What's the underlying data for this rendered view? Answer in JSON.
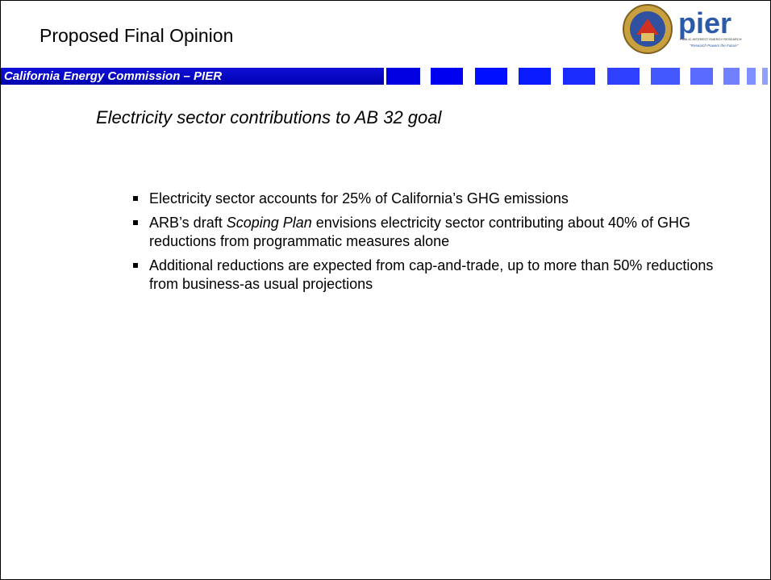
{
  "header": {
    "title": "Proposed Final Opinion",
    "subtitle": "California Energy Commission – PIER",
    "logo": {
      "name": "pier",
      "tagline_top": "PUBLIC INTEREST ENERGY RESEARCH",
      "tagline_bottom": "\"Research Powers the Future\""
    }
  },
  "body": {
    "heading": "Electricity sector contributions to AB 32 goal",
    "bullets": [
      {
        "parts": [
          "Electricity sector accounts for 25% of California’s GHG emissions"
        ]
      },
      {
        "parts": [
          "ARB’s draft ",
          "Scoping Plan",
          " envisions electricity sector contributing about 40% of GHG reductions from programmatic measures alone"
        ]
      },
      {
        "parts": [
          "Additional reductions are expected from cap-and-trade, up to more than 50% reductions from business-as usual projections"
        ]
      }
    ]
  }
}
